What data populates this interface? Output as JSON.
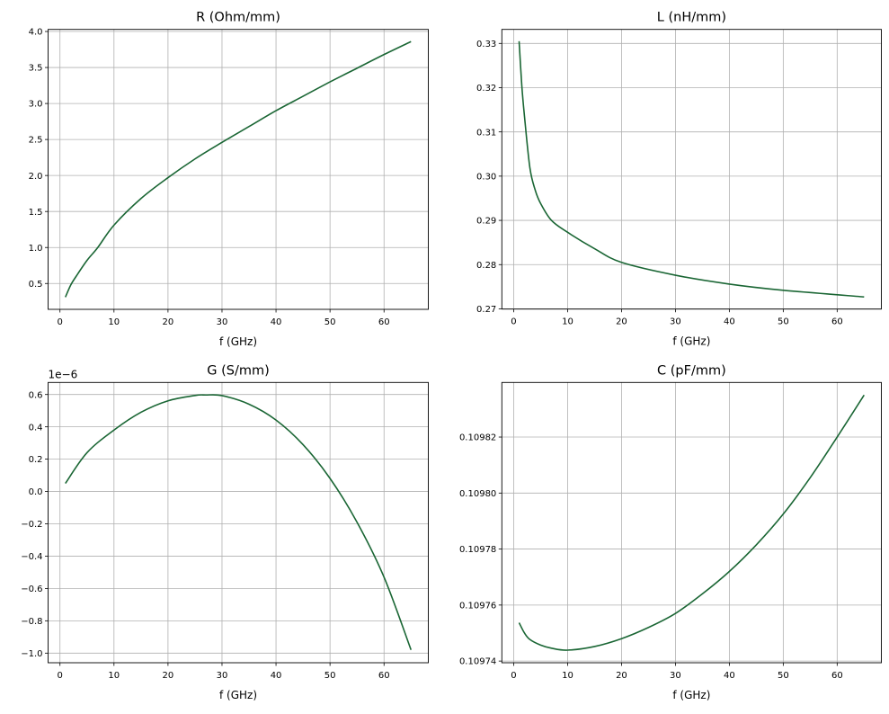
{
  "line_color": "#1a6634",
  "grid_color": "#b0b0b0",
  "chart_data": [
    {
      "type": "line",
      "title": "R (Ohm/mm)",
      "xlabel": "f (GHz)",
      "ylabel": "",
      "grid": true,
      "xlim": [
        -2.2,
        68.2
      ],
      "ylim": [
        0.141,
        4.029
      ],
      "xticks": [
        0,
        10,
        20,
        30,
        40,
        50,
        60
      ],
      "yticks": [
        0.5,
        1.0,
        1.5,
        2.0,
        2.5,
        3.0,
        3.5,
        4.0
      ],
      "ytick_labels": [
        "0.5",
        "1.0",
        "1.5",
        "2.0",
        "2.5",
        "3.0",
        "3.5",
        "4.0"
      ],
      "offset_text": "",
      "x": [
        1,
        2,
        3,
        5,
        7,
        10,
        15,
        20,
        25,
        30,
        35,
        40,
        45,
        50,
        55,
        60,
        65
      ],
      "y": [
        0.31,
        0.48,
        0.6,
        0.82,
        1.0,
        1.31,
        1.68,
        1.97,
        2.23,
        2.46,
        2.68,
        2.9,
        3.1,
        3.3,
        3.49,
        3.68,
        3.86
      ]
    },
    {
      "type": "line",
      "title": "L (nH/mm)",
      "xlabel": "f (GHz)",
      "ylabel": "",
      "grid": true,
      "xlim": [
        -2.2,
        68.2
      ],
      "ylim": [
        0.26995,
        0.33317
      ],
      "xticks": [
        0,
        10,
        20,
        30,
        40,
        50,
        60
      ],
      "yticks": [
        0.27,
        0.28,
        0.29,
        0.3,
        0.31,
        0.32,
        0.33
      ],
      "ytick_labels": [
        "0.27",
        "0.28",
        "0.29",
        "0.30",
        "0.31",
        "0.32",
        "0.33"
      ],
      "offset_text": "",
      "x": [
        1,
        1.5,
        2,
        3,
        4,
        5,
        7,
        10,
        15,
        20,
        30,
        40,
        50,
        65
      ],
      "y": [
        0.3305,
        0.3205,
        0.3135,
        0.3019,
        0.2968,
        0.2938,
        0.29,
        0.2873,
        0.2836,
        0.2805,
        0.2776,
        0.2756,
        0.2742,
        0.2727
      ]
    },
    {
      "type": "line",
      "title": "G (S/mm)",
      "xlabel": "f (GHz)",
      "ylabel": "",
      "grid": true,
      "xlim": [
        -2.2,
        68.2
      ],
      "ylim": [
        -1.0595,
        0.6746
      ],
      "xticks": [
        0,
        10,
        20,
        30,
        40,
        50,
        60
      ],
      "yticks": [
        -1.0,
        -0.8,
        -0.6,
        -0.4,
        -0.2,
        0.0,
        0.2,
        0.4,
        0.6
      ],
      "ytick_labels": [
        "−1.0",
        "−0.8",
        "−0.6",
        "−0.4",
        "−0.2",
        "0.0",
        "0.2",
        "0.4",
        "0.6"
      ],
      "offset_text": "1e−6",
      "x": [
        1,
        5,
        10,
        15,
        20,
        25,
        27,
        30,
        35,
        40,
        45,
        50,
        55,
        60,
        65
      ],
      "y": [
        0.05,
        0.24,
        0.38,
        0.49,
        0.561,
        0.594,
        0.597,
        0.593,
        0.54,
        0.442,
        0.29,
        0.081,
        -0.19,
        -0.53,
        -0.98
      ]
    },
    {
      "type": "line",
      "title": "C (pF/mm)",
      "xlabel": "f (GHz)",
      "ylabel": "",
      "grid": true,
      "xlim": [
        -2.2,
        68.2
      ],
      "ylim": [
        0.1097394,
        0.1098395
      ],
      "xticks": [
        0,
        10,
        20,
        30,
        40,
        50,
        60
      ],
      "yticks": [
        0.10974,
        0.10976,
        0.10978,
        0.1098,
        0.10982
      ],
      "ytick_labels": [
        "0.10974",
        "0.10976",
        "0.10978",
        "0.10980",
        "0.10982"
      ],
      "offset_text": "",
      "x": [
        1,
        2,
        3,
        5,
        7,
        10,
        15,
        20,
        25,
        30,
        35,
        40,
        45,
        50,
        55,
        60,
        65
      ],
      "y": [
        0.1097537,
        0.10975,
        0.1097477,
        0.1097457,
        0.1097446,
        0.1097439,
        0.1097452,
        0.109748,
        0.109752,
        0.109757,
        0.109764,
        0.109772,
        0.1097815,
        0.1097925,
        0.1098055,
        0.10982,
        0.109835
      ]
    }
  ]
}
